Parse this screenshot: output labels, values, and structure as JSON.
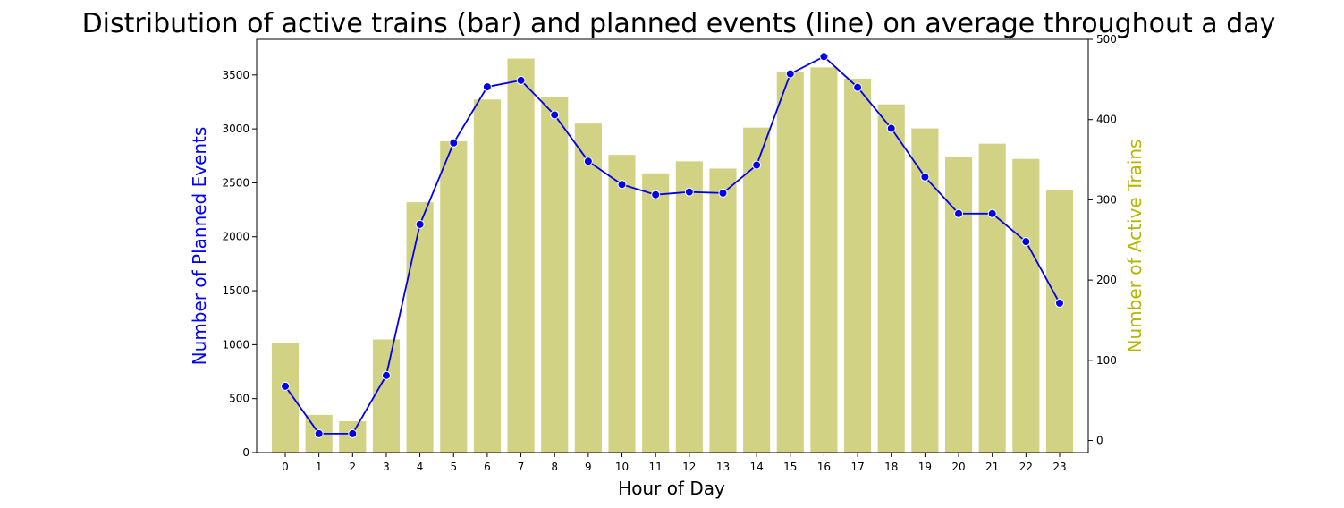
{
  "chart_data": {
    "type": "bar+line",
    "title": "Distribution of active trains (bar) and planned events (line) on average throughout a day",
    "xlabel": "Hour of Day",
    "ylabel_left": "Number of Planned Events",
    "ylabel_right": "Number of Active Trains",
    "categories": [
      "0",
      "1",
      "2",
      "3",
      "4",
      "5",
      "6",
      "7",
      "8",
      "9",
      "10",
      "11",
      "12",
      "13",
      "14",
      "15",
      "16",
      "17",
      "18",
      "19",
      "20",
      "21",
      "22",
      "23"
    ],
    "ylim_left": [
      0,
      3830
    ],
    "yticks_left": [
      0,
      500,
      1000,
      1500,
      2000,
      2500,
      3000,
      3500
    ],
    "ylim_right": [
      -15,
      500
    ],
    "yticks_right": [
      0,
      100,
      200,
      300,
      400,
      500
    ],
    "series": [
      {
        "axis": "right",
        "type": "bar",
        "color": "#d2d285",
        "values": [
          121,
          32,
          24,
          126,
          297,
          373,
          425,
          476,
          428,
          395,
          356,
          333,
          348,
          339,
          390,
          460,
          465,
          451,
          419,
          389,
          353,
          370,
          351,
          312
        ]
      },
      {
        "axis": "left",
        "type": "line",
        "color": "#0000ee",
        "values": [
          615,
          175,
          175,
          715,
          2115,
          2870,
          3390,
          3450,
          3130,
          2700,
          2485,
          2390,
          2415,
          2405,
          2665,
          3510,
          3670,
          3385,
          3005,
          2555,
          2215,
          2215,
          1955,
          1385
        ]
      }
    ],
    "colors": {
      "left_axis_label": "#0000ff",
      "right_axis_label": "#b5b500"
    },
    "grid": false
  }
}
